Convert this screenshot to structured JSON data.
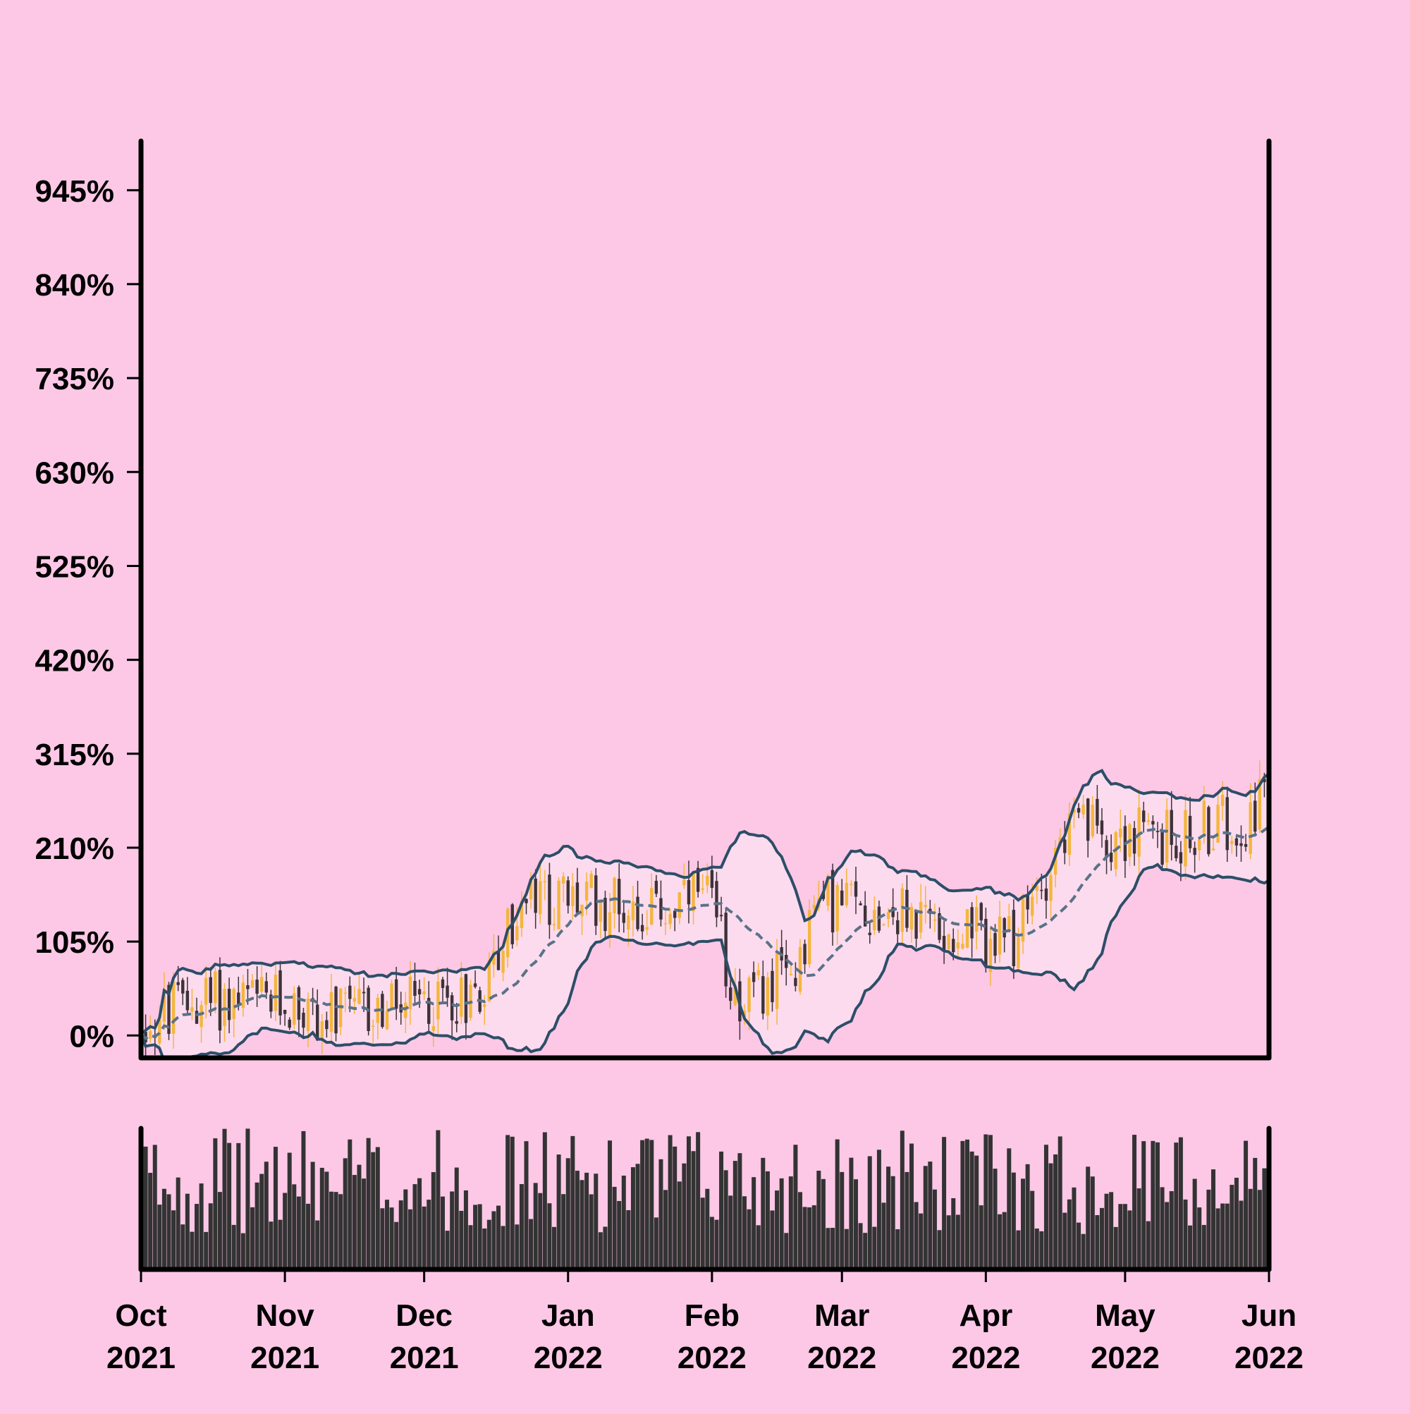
{
  "chart_data": {
    "type": "candlestick",
    "title": "",
    "xlabel": "",
    "ylabel": "",
    "y_unit": "%",
    "ylim": [
      -25,
      1000
    ],
    "y_ticks": [
      0,
      105,
      210,
      315,
      420,
      525,
      630,
      735,
      840,
      945
    ],
    "y_tick_labels": [
      "0%",
      "105%",
      "210%",
      "315%",
      "420%",
      "525%",
      "630%",
      "735%",
      "840%",
      "945%"
    ],
    "x_range": [
      "2021-10-01",
      "2022-06-01"
    ],
    "x_ticks": [
      {
        "date": "2021-10-01",
        "month": "Oct",
        "year": "2021"
      },
      {
        "date": "2021-11-01",
        "month": "Nov",
        "year": "2021"
      },
      {
        "date": "2021-12-01",
        "month": "Dec",
        "year": "2021"
      },
      {
        "date": "2022-01-01",
        "month": "Jan",
        "year": "2022"
      },
      {
        "date": "2022-02-01",
        "month": "Feb",
        "year": "2022"
      },
      {
        "date": "2022-03-01",
        "month": "Mar",
        "year": "2022"
      },
      {
        "date": "2022-04-01",
        "month": "Apr",
        "year": "2022"
      },
      {
        "date": "2022-05-01",
        "month": "May",
        "year": "2022"
      },
      {
        "date": "2022-06-01",
        "month": "Jun",
        "year": "2022"
      }
    ],
    "grid": false,
    "colors": {
      "background": "#fcc8e6",
      "up": "#f4b63c",
      "down": "#3d3238",
      "band": "#2d4e68",
      "middle": "#5a7287",
      "band_fill": "#fde3f1",
      "volume": "#333333",
      "axis": "#000000"
    },
    "price_anchors": [
      {
        "date": "2021-10-01",
        "close": 15
      },
      {
        "date": "2021-10-15",
        "close": 40
      },
      {
        "date": "2021-11-01",
        "close": 35
      },
      {
        "date": "2021-11-10",
        "close": 18
      },
      {
        "date": "2021-11-25",
        "close": 30
      },
      {
        "date": "2021-12-10",
        "close": 45
      },
      {
        "date": "2021-12-25",
        "close": 150
      },
      {
        "date": "2022-01-10",
        "close": 150
      },
      {
        "date": "2022-01-20",
        "close": 140
      },
      {
        "date": "2022-01-30",
        "close": 150
      },
      {
        "date": "2022-02-08",
        "close": 40
      },
      {
        "date": "2022-02-16",
        "close": 60
      },
      {
        "date": "2022-02-25",
        "close": 150
      },
      {
        "date": "2022-03-10",
        "close": 140
      },
      {
        "date": "2022-03-25",
        "close": 120
      },
      {
        "date": "2022-04-05",
        "close": 100
      },
      {
        "date": "2022-04-20",
        "close": 230
      },
      {
        "date": "2022-05-10",
        "close": 220
      },
      {
        "date": "2022-05-25",
        "close": 240
      },
      {
        "date": "2022-06-01",
        "close": 270
      }
    ],
    "bollinger": {
      "window": 20,
      "num_std": 2
    },
    "volume_panel": {
      "ylim": [
        0,
        1
      ]
    }
  }
}
